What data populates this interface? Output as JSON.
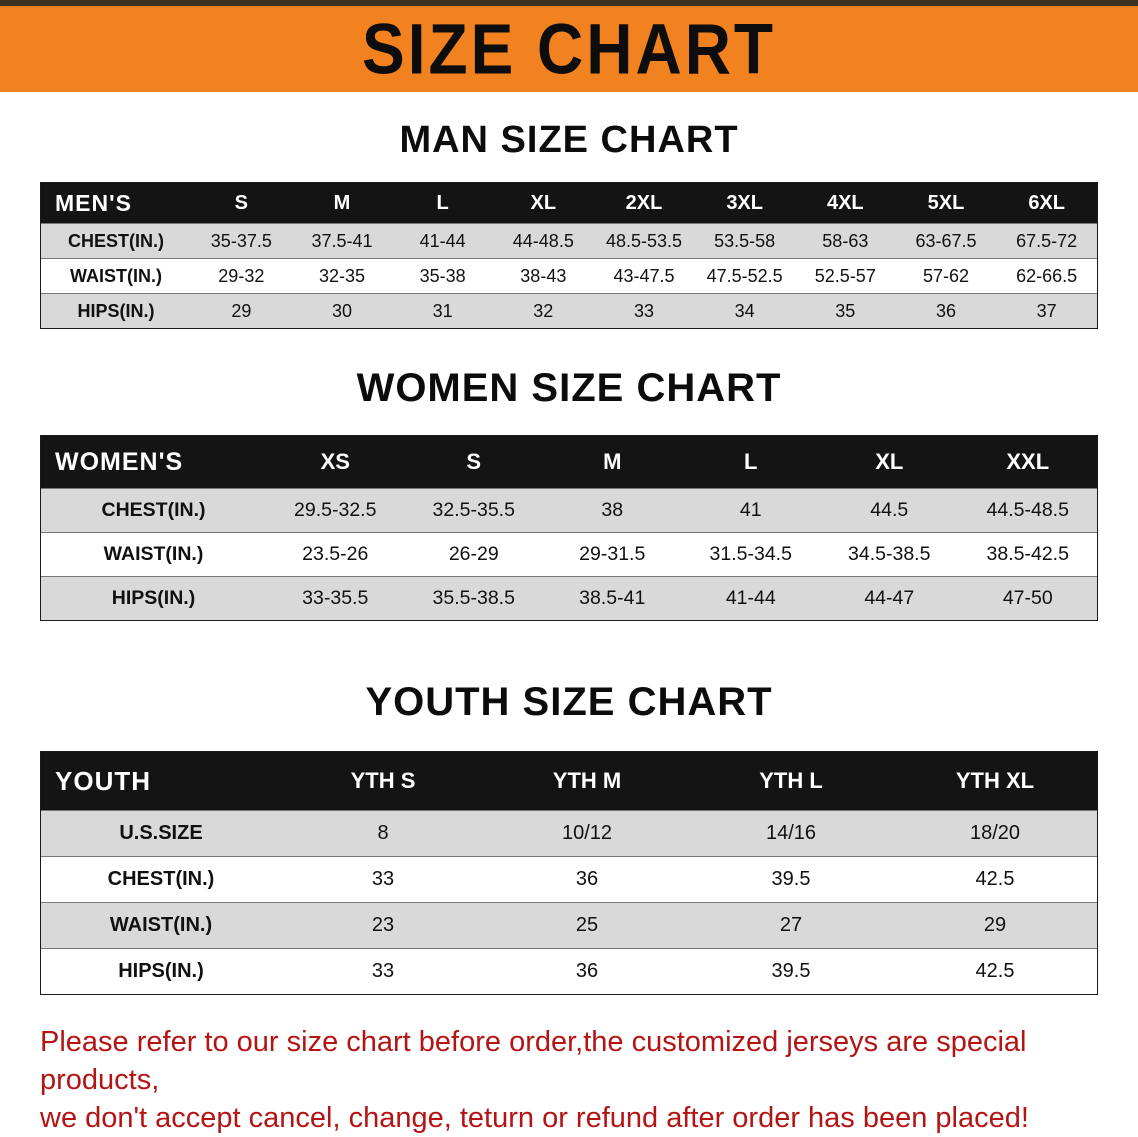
{
  "banner": {
    "title": "SIZE CHART"
  },
  "colors": {
    "banner_bg": "#f28120",
    "table_header_bg": "#141414",
    "row_stripe": "#d9d9d9",
    "footer_text": "#b51414"
  },
  "sections": [
    {
      "heading": "MAN SIZE CHART",
      "table": {
        "header": [
          "MEN'S",
          "S",
          "M",
          "L",
          "XL",
          "2XL",
          "3XL",
          "4XL",
          "5XL",
          "6XL"
        ],
        "rows": [
          [
            "CHEST(IN.)",
            "35-37.5",
            "37.5-41",
            "41-44",
            "44-48.5",
            "48.5-53.5",
            "53.5-58",
            "58-63",
            "63-67.5",
            "67.5-72"
          ],
          [
            "WAIST(IN.)",
            "29-32",
            "32-35",
            "35-38",
            "38-43",
            "43-47.5",
            "47.5-52.5",
            "52.5-57",
            "57-62",
            "62-66.5"
          ],
          [
            "HIPS(IN.)",
            "29",
            "30",
            "31",
            "32",
            "33",
            "34",
            "35",
            "36",
            "37"
          ]
        ]
      }
    },
    {
      "heading": "WOMEN SIZE CHART",
      "table": {
        "header": [
          "WOMEN'S",
          "XS",
          "S",
          "M",
          "L",
          "XL",
          "XXL"
        ],
        "rows": [
          [
            "CHEST(IN.)",
            "29.5-32.5",
            "32.5-35.5",
            "38",
            "41",
            "44.5",
            "44.5-48.5"
          ],
          [
            "WAIST(IN.)",
            "23.5-26",
            "26-29",
            "29-31.5",
            "31.5-34.5",
            "34.5-38.5",
            "38.5-42.5"
          ],
          [
            "HIPS(IN.)",
            "33-35.5",
            "35.5-38.5",
            "38.5-41",
            "41-44",
            "44-47",
            "47-50"
          ]
        ]
      }
    },
    {
      "heading": "YOUTH SIZE CHART",
      "table": {
        "header": [
          "YOUTH",
          "YTH S",
          "YTH M",
          "YTH L",
          "YTH XL"
        ],
        "rows": [
          [
            "U.S.SIZE",
            "8",
            "10/12",
            "14/16",
            "18/20"
          ],
          [
            "CHEST(IN.)",
            "33",
            "36",
            "39.5",
            "42.5"
          ],
          [
            "WAIST(IN.)",
            "23",
            "25",
            "27",
            "29"
          ],
          [
            "HIPS(IN.)",
            "33",
            "36",
            "39.5",
            "42.5"
          ]
        ]
      }
    }
  ],
  "footer": {
    "line1": "Please refer to our size chart before order,the customized jerseys are special products,",
    "line2": "we don't accept cancel, change, teturn or refund after order has been placed!"
  }
}
